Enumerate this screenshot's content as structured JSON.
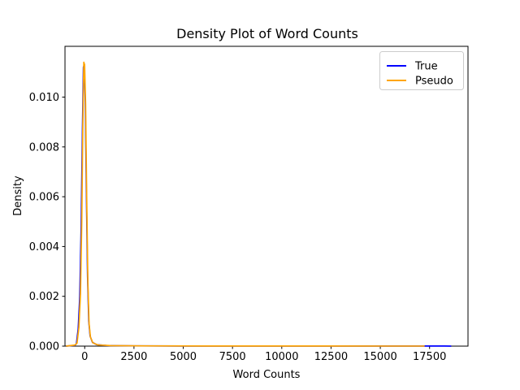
{
  "chart_data": {
    "type": "line",
    "title": "Density Plot of Word Counts",
    "xlabel": "Word Counts",
    "ylabel": "Density",
    "xlim": [
      -1000,
      19450
    ],
    "ylim": [
      0,
      0.01204
    ],
    "grid": false,
    "background_color": "#ffffff",
    "frame_color": "#000000",
    "x_ticks": [
      0,
      2500,
      5000,
      7500,
      10000,
      12500,
      15000,
      17500
    ],
    "x_tick_labels": [
      "0",
      "2500",
      "5000",
      "7500",
      "10000",
      "12500",
      "15000",
      "17500"
    ],
    "y_ticks": [
      0.0,
      0.002,
      0.004,
      0.006,
      0.008,
      0.01
    ],
    "y_tick_labels": [
      "0.000",
      "0.002",
      "0.004",
      "0.006",
      "0.008",
      "0.010"
    ],
    "legend": {
      "position": "upper right"
    },
    "series": [
      {
        "name": "True",
        "color": "#0000ff",
        "peak": {
          "x": 0,
          "density": 0.0113
        },
        "x_range": [
          -950,
          18600
        ],
        "points": [
          [
            -950,
            1e-06
          ],
          [
            -500,
            3e-05
          ],
          [
            -420,
            0.0001
          ],
          [
            -330,
            0.0007
          ],
          [
            -250,
            0.002
          ],
          [
            -180,
            0.0048
          ],
          [
            -115,
            0.0087
          ],
          [
            -65,
            0.0112
          ],
          [
            -25,
            0.0113
          ],
          [
            30,
            0.0098
          ],
          [
            85,
            0.0062
          ],
          [
            145,
            0.0028
          ],
          [
            205,
            0.001
          ],
          [
            275,
            0.0004
          ],
          [
            395,
            0.00015
          ],
          [
            600,
            6e-05
          ],
          [
            1100,
            2.5e-05
          ],
          [
            2500,
            1e-05
          ],
          [
            5000,
            5e-06
          ],
          [
            9000,
            3e-06
          ],
          [
            13000,
            3e-06
          ],
          [
            16000,
            3e-06
          ],
          [
            17250,
            3e-06
          ],
          [
            17700,
            5e-06
          ],
          [
            18250,
            5e-06
          ],
          [
            18600,
            1e-06
          ]
        ]
      },
      {
        "name": "Pseudo",
        "color": "#ffa500",
        "peak": {
          "x": 0,
          "density": 0.0114
        },
        "x_range": [
          -950,
          17250
        ],
        "points": [
          [
            -950,
            1e-06
          ],
          [
            -500,
            4e-05
          ],
          [
            -390,
            0.00012
          ],
          [
            -295,
            0.00075
          ],
          [
            -215,
            0.0021
          ],
          [
            -150,
            0.005
          ],
          [
            -95,
            0.0089
          ],
          [
            -45,
            0.0114
          ],
          [
            -5,
            0.0113
          ],
          [
            45,
            0.0097
          ],
          [
            100,
            0.006
          ],
          [
            160,
            0.0026
          ],
          [
            220,
            0.00092
          ],
          [
            290,
            0.00036
          ],
          [
            415,
            0.00013
          ],
          [
            660,
            5e-05
          ],
          [
            1300,
            2e-05
          ],
          [
            3000,
            1e-05
          ],
          [
            7000,
            4e-06
          ],
          [
            12000,
            3e-06
          ],
          [
            15500,
            2e-06
          ],
          [
            17250,
            2e-06
          ]
        ]
      }
    ]
  }
}
